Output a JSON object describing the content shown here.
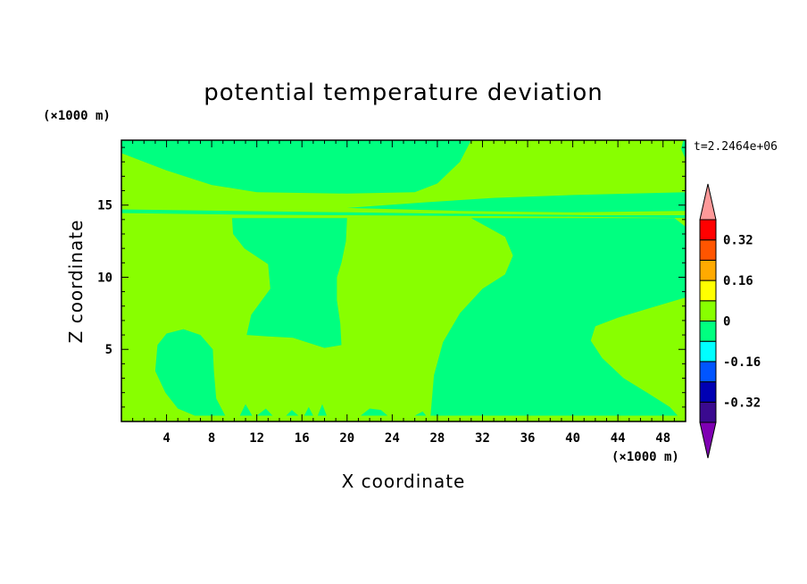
{
  "chart_data": {
    "type": "heatmap",
    "title": "potential temperature deviation",
    "xlabel": "X coordinate",
    "ylabel": "Z coordinate",
    "x_unit_label": "(×1000 m)",
    "y_unit_label": "(×1000 m)",
    "time_label": "t=2.2464e+06",
    "xlim": [
      0,
      50
    ],
    "ylim": [
      0,
      19.5
    ],
    "x_ticks": [
      4,
      8,
      12,
      16,
      20,
      24,
      28,
      32,
      36,
      40,
      44,
      48
    ],
    "y_ticks": [
      5,
      10,
      15
    ],
    "background_level_color": "#88ff00",
    "regions": [
      {
        "level": "-0.08 to 0",
        "color": "#00ff80",
        "points": [
          [
            0,
            18.6
          ],
          [
            4,
            17.4
          ],
          [
            8,
            16.4
          ],
          [
            12,
            15.9
          ],
          [
            20,
            15.8
          ],
          [
            26,
            15.9
          ],
          [
            28,
            16.5
          ],
          [
            30,
            18
          ],
          [
            31,
            19.5
          ],
          [
            0,
            19.5
          ]
        ]
      },
      {
        "level": "-0.08 to 0",
        "color": "#00ff80",
        "points": [
          [
            0,
            14.7
          ],
          [
            10,
            14.6
          ],
          [
            20,
            14.5
          ],
          [
            30,
            14.4
          ],
          [
            41,
            14.3
          ],
          [
            50,
            14.3
          ],
          [
            50,
            14.1
          ],
          [
            40,
            14.2
          ],
          [
            30,
            14.25
          ],
          [
            20,
            14.3
          ],
          [
            10,
            14.35
          ],
          [
            0,
            14.45
          ]
        ]
      },
      {
        "level": "-0.08 to 0",
        "color": "#00ff80",
        "points": [
          [
            20,
            14.8
          ],
          [
            27,
            15.2
          ],
          [
            33,
            15.5
          ],
          [
            40,
            15.7
          ],
          [
            50,
            15.9
          ],
          [
            50,
            14.6
          ],
          [
            40,
            14.5
          ],
          [
            30,
            14.6
          ]
        ]
      },
      {
        "level": "-0.08 to 0",
        "color": "#00ff80",
        "points": [
          [
            9.8,
            14.1
          ],
          [
            9.9,
            13
          ],
          [
            10.9,
            12
          ],
          [
            13,
            10.9
          ],
          [
            13.2,
            9.2
          ],
          [
            11.5,
            7.4
          ],
          [
            11.1,
            6
          ],
          [
            13,
            5.9
          ],
          [
            15.2,
            5.8
          ],
          [
            18,
            5.1
          ],
          [
            19.5,
            5.3
          ],
          [
            19.4,
            6.8
          ],
          [
            19.1,
            8.4
          ],
          [
            19.1,
            10
          ],
          [
            19.5,
            11
          ],
          [
            19.9,
            12.5
          ],
          [
            20,
            14.1
          ]
        ]
      },
      {
        "level": "-0.08 to 0",
        "color": "#00ff80",
        "points": [
          [
            31,
            14.1
          ],
          [
            34,
            12.8
          ],
          [
            34.7,
            11.5
          ],
          [
            34,
            10.2
          ],
          [
            32,
            9.2
          ],
          [
            30,
            7.5
          ],
          [
            28.5,
            5.5
          ],
          [
            27.7,
            3.2
          ],
          [
            27.4,
            0.4
          ],
          [
            35,
            0.4
          ],
          [
            44,
            0.4
          ],
          [
            49.3,
            0.4
          ],
          [
            48.6,
            1
          ],
          [
            46.6,
            2
          ],
          [
            44.5,
            3
          ],
          [
            42.6,
            4.4
          ],
          [
            41.6,
            5.6
          ],
          [
            42,
            6.6
          ],
          [
            44,
            7.2
          ],
          [
            47,
            7.9
          ],
          [
            50,
            8.6
          ],
          [
            50,
            13.5
          ],
          [
            49,
            14.1
          ]
        ]
      },
      {
        "level": "-0.08 to 0",
        "color": "#00ff80",
        "points": [
          [
            3.2,
            5.3
          ],
          [
            4,
            6.1
          ],
          [
            5.5,
            6.4
          ],
          [
            7,
            6
          ],
          [
            8.1,
            5
          ],
          [
            8.2,
            3.5
          ],
          [
            8.4,
            1.6
          ],
          [
            9.2,
            0.4
          ],
          [
            6.5,
            0.4
          ],
          [
            5,
            0.9
          ],
          [
            3.9,
            2
          ],
          [
            3,
            3.5
          ]
        ]
      },
      {
        "level": "-0.08 to 0",
        "color": "#00ff80",
        "points": [
          [
            21.2,
            0.4
          ],
          [
            22,
            0.9
          ],
          [
            23,
            0.8
          ],
          [
            23.6,
            0.4
          ]
        ]
      },
      {
        "level": "-0.08 to 0",
        "color": "#00ff80",
        "points": [
          [
            50,
            19.5
          ],
          [
            50,
            18.2
          ],
          [
            49.6,
            18.9
          ],
          [
            49.8,
            19.5
          ]
        ]
      },
      {
        "level": "-0.08 to 0",
        "color": "#00ff80",
        "points": [
          [
            10.5,
            0.4
          ],
          [
            11,
            1.2
          ],
          [
            11.6,
            0.4
          ],
          [
            12,
            0.4
          ],
          [
            12.8,
            0.9
          ],
          [
            13.4,
            0.4
          ],
          [
            14.6,
            0.4
          ],
          [
            15.1,
            0.8
          ],
          [
            15.7,
            0.4
          ],
          [
            16.2,
            0.4
          ],
          [
            16.6,
            1
          ],
          [
            17,
            0.4
          ],
          [
            17.4,
            0.4
          ],
          [
            17.8,
            1.2
          ],
          [
            18.2,
            0.4
          ],
          [
            26,
            0.4
          ],
          [
            26.7,
            0.7
          ],
          [
            27,
            0.4
          ],
          [
            31.8,
            0.4
          ],
          [
            32.6,
            1.1
          ],
          [
            33.4,
            0.4
          ]
        ]
      }
    ],
    "colorbar": {
      "levels": [
        "0.32",
        "0.16",
        "0",
        "-0.16",
        "-0.32"
      ],
      "colors": [
        "#7f00b3",
        "#3a0a8f",
        "#0000b3",
        "#0055ff",
        "#00ffff",
        "#00ff80",
        "#88ff00",
        "#ffff00",
        "#ffaa00",
        "#ff5500",
        "#ff0000",
        "#ff9999"
      ]
    }
  }
}
